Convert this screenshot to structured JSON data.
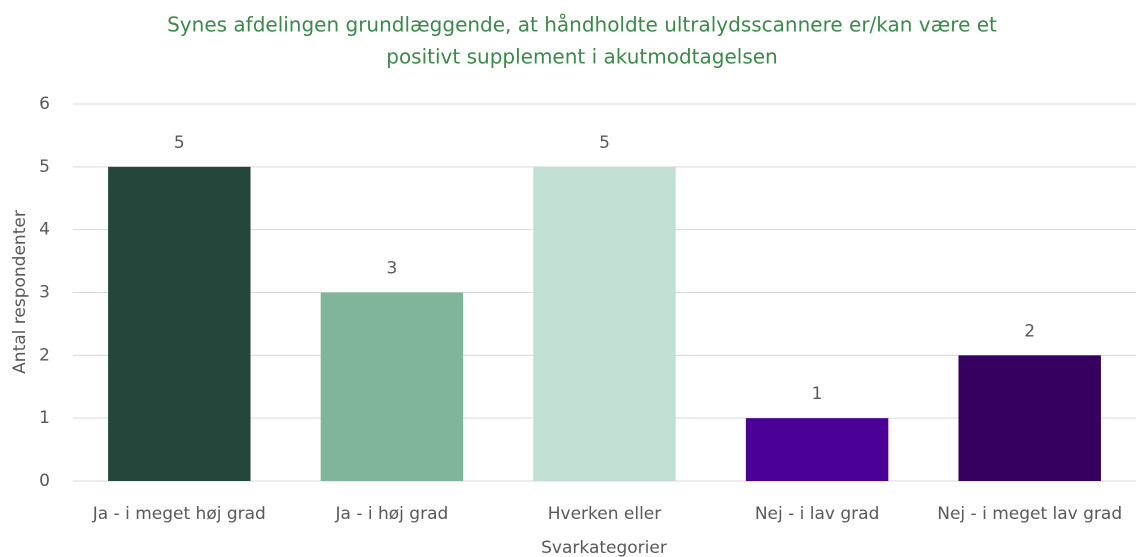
{
  "chart_data": {
    "type": "bar",
    "title": [
      "Synes afdelingen grundlæggende, at håndholdte ultralydsscannere er/kan være et",
      "positivt supplement i akutmodtagelsen"
    ],
    "xlabel": "Svarkategorier",
    "ylabel": "Antal respondenter",
    "categories": [
      "Ja - i meget høj grad",
      "Ja - i høj grad",
      "Hverken eller",
      "Nej - i lav grad",
      "Nej - i meget lav grad"
    ],
    "values": [
      5,
      3,
      5,
      1,
      2
    ],
    "colors": [
      "#25463a",
      "#80b59b",
      "#c2dfd3",
      "#4b0096",
      "#360060"
    ],
    "ylim": [
      0,
      6
    ],
    "yticks": [
      0,
      1,
      2,
      3,
      4,
      5,
      6
    ],
    "grid": true
  }
}
